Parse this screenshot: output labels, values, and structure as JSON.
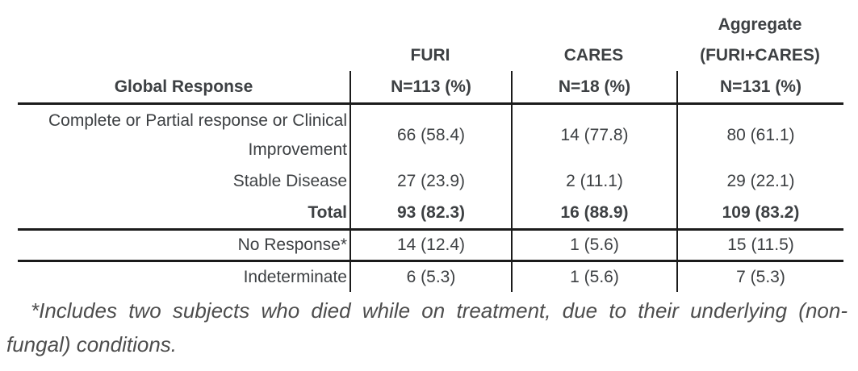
{
  "table": {
    "header": {
      "row_header": "Global Response",
      "columns": [
        {
          "group_lines": [
            "FURI"
          ],
          "n": "N=113 (%)"
        },
        {
          "group_lines": [
            "CARES"
          ],
          "n": "N=18 (%)"
        },
        {
          "group_lines": [
            "Aggregate",
            "(FURI+CARES)"
          ],
          "n": "N=131 (%)"
        }
      ]
    },
    "rows": [
      {
        "label": "Complete or Partial response or Clinical",
        "label2": "Improvement",
        "values": [
          "66 (58.4)",
          "14 (77.8)",
          "80 (61.1)"
        ]
      },
      {
        "label": "Stable Disease",
        "values": [
          "27 (23.9)",
          "2 (11.1)",
          "29 (22.1)"
        ]
      },
      {
        "label": "Total",
        "values": [
          "93 (82.3)",
          "16 (88.9)",
          "109 (83.2)"
        ]
      },
      {
        "label": "No Response*",
        "values": [
          "14 (12.4)",
          "1 (5.6)",
          "15 (11.5)"
        ]
      },
      {
        "label": "Indeterminate",
        "values": [
          "6 (5.3)",
          "1 (5.6)",
          "7 (5.3)"
        ]
      }
    ]
  },
  "footnote": {
    "lines": [
      "*Includes two subjects who died while on treatment, due to their underlying (non-",
      "fungal) conditions."
    ]
  },
  "colors": {
    "text": "#3d4043",
    "rule_line": "#1b1b1b",
    "footnote_text": "#4d4d4d",
    "background": "#ffffff"
  }
}
